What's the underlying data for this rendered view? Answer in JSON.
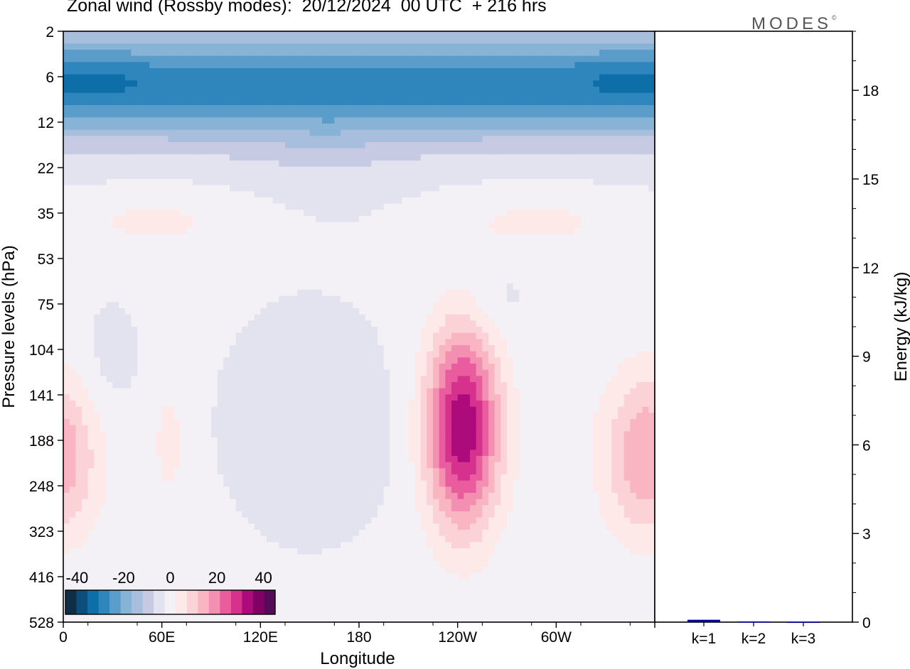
{
  "title": "Zonal wind (Rossby modes):  20/12/2024  00 UTC  + 216 hrs",
  "logo": "MODES",
  "chart_data": [
    {
      "type": "heatmap",
      "xlabel": "Longitude",
      "ylabel": "Pressure levels (hPa)",
      "x_ticks": [
        "0",
        "60E",
        "120E",
        "180",
        "120W",
        "60W"
      ],
      "y_ticks": [
        "2",
        "6",
        "12",
        "22",
        "35",
        "53",
        "75",
        "104",
        "141",
        "188",
        "248",
        "323",
        "416",
        "528"
      ],
      "colorbar": {
        "ticks": [
          "-40",
          "-20",
          "0",
          "20",
          "40"
        ],
        "range": [
          -45,
          45
        ],
        "step": 5,
        "colors": [
          "#0f2d47",
          "#0c4f7d",
          "#0e6ea8",
          "#2f86bd",
          "#5a9dcb",
          "#86b3d6",
          "#a8bedd",
          "#c6cbe3",
          "#e3e2ef",
          "#f3f0f6",
          "#fde9e8",
          "#fbd3d6",
          "#f9b6c2",
          "#f38fb1",
          "#e95d9e",
          "#d6328d",
          "#ad0a7c",
          "#820066",
          "#550a5a"
        ]
      },
      "features": [
        {
          "kind": "upper easterlies",
          "level_hPa": [
            2,
            14
          ],
          "min": -27.5
        },
        {
          "kind": "westerly maximum",
          "lon": "120W",
          "level_hPa": 160,
          "max": 37.5
        },
        {
          "kind": "westerly maximum",
          "lon": "near 60W-0",
          "level_hPa": 180,
          "max": 17.5
        },
        {
          "kind": "weak easterlies",
          "lon": "120E-180",
          "level_hPa": [
            80,
            200
          ],
          "min": -7.5
        }
      ]
    },
    {
      "type": "bar",
      "ylabel": "Energy (kJ/kg)",
      "categories": [
        "k=1",
        "k=2",
        "k=3"
      ],
      "values": [
        0.08,
        0.02,
        0.01
      ],
      "ylim": [
        0,
        20
      ],
      "y_ticks": [
        "0",
        "3",
        "6",
        "9",
        "12",
        "15",
        "18"
      ],
      "bar_color": "#0000a0"
    }
  ]
}
